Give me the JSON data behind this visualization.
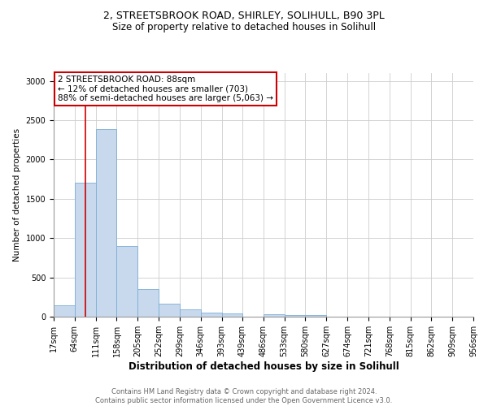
{
  "title1": "2, STREETSBROOK ROAD, SHIRLEY, SOLIHULL, B90 3PL",
  "title2": "Size of property relative to detached houses in Solihull",
  "xlabel": "Distribution of detached houses by size in Solihull",
  "ylabel": "Number of detached properties",
  "footnote1": "Contains HM Land Registry data © Crown copyright and database right 2024.",
  "footnote2": "Contains public sector information licensed under the Open Government Licence v3.0.",
  "annotation_line1": "2 STREETSBROOK ROAD: 88sqm",
  "annotation_line2": "← 12% of detached houses are smaller (703)",
  "annotation_line3": "88% of semi-detached houses are larger (5,063) →",
  "bar_color": "#c8d9ee",
  "bar_edge_color": "#7aadd4",
  "red_line_color": "#cc0000",
  "bin_edges": [
    17,
    64,
    111,
    158,
    205,
    252,
    299,
    346,
    393,
    439,
    486,
    533,
    580,
    627,
    674,
    721,
    768,
    815,
    862,
    909,
    956
  ],
  "bin_counts": [
    140,
    1700,
    2390,
    900,
    350,
    165,
    90,
    55,
    40,
    0,
    30,
    25,
    25,
    0,
    0,
    0,
    0,
    0,
    0,
    0
  ],
  "red_line_x": 88,
  "ylim": [
    0,
    3100
  ],
  "yticks": [
    0,
    500,
    1000,
    1500,
    2000,
    2500,
    3000
  ],
  "title1_fontsize": 9,
  "title2_fontsize": 8.5,
  "xlabel_fontsize": 8.5,
  "ylabel_fontsize": 7.5,
  "tick_fontsize": 7,
  "footnote_fontsize": 6,
  "annotation_fontsize": 7.5
}
